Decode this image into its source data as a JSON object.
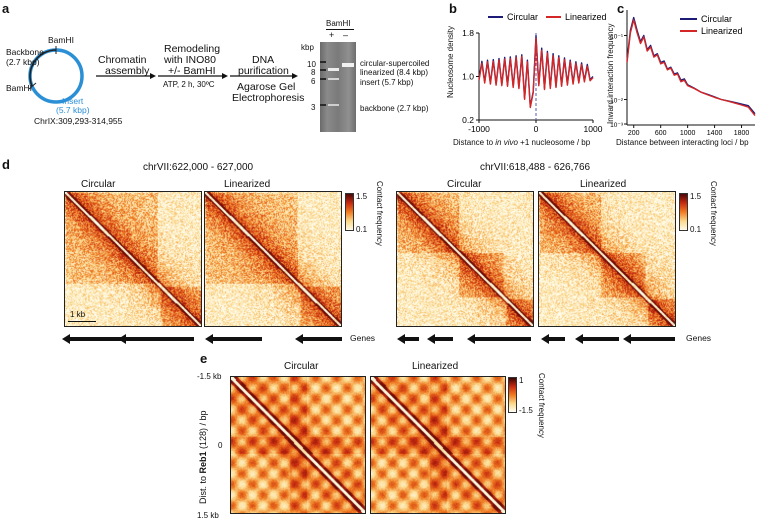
{
  "panel_a": {
    "label": "a",
    "plasmid": {
      "backbone": "Backbone",
      "backbone_size": "(2.7 kbp)",
      "site_top": "BamHI",
      "site_left": "BamHI",
      "insert": "Insert",
      "insert_size": "(5.7 kbp)",
      "locus": "ChrIX:309,293-314,955"
    },
    "steps": {
      "step1_l1": "Chromatin",
      "step1_l2": "assembly",
      "step2_l1": "Remodeling",
      "step2_l2": "with INO80",
      "step2_l3": "+/- BamHI",
      "step2_sub": "ATP, 2 h, 30ºC",
      "step3_l1": "DNA",
      "step3_l2": "purification",
      "step3_sub1": "Agarose Gel",
      "step3_sub2": "Electrophoresis"
    },
    "gel": {
      "header": "BamHI",
      "lane_plus": "+",
      "lane_minus": "–",
      "kbp": "kbp",
      "markers": [
        "10",
        "8",
        "6",
        "3"
      ],
      "band_supercoiled": "circular-supercoiled",
      "band_linearized": "linearized (8.4 kbp)",
      "band_insert": "insert (5.7 kbp)",
      "band_backbone": "backbone (2.7 kbp)"
    }
  },
  "panel_b": {
    "label": "b",
    "chart_data": {
      "type": "line",
      "legend": [
        "Circular",
        "Linearized"
      ],
      "ylabel": "Nucleosome density",
      "xlabel_pre": "Distance to ",
      "xlabel_ital": "in vivo",
      "xlabel_post": " +1 nucleosome / bp",
      "xlim": [
        -1000,
        1000
      ],
      "ylim": [
        0.2,
        1.8
      ],
      "xticks": [
        "-1000",
        "0",
        "1000"
      ],
      "yticks": [
        "1.8",
        "1.0",
        "0.2"
      ],
      "series": [
        {
          "name": "Circular",
          "color": "#1c1c78",
          "x": [
            -1000,
            -950,
            -900,
            -850,
            -800,
            -750,
            -700,
            -650,
            -600,
            -550,
            -500,
            -450,
            -400,
            -350,
            -300,
            -250,
            -200,
            -150,
            -100,
            -50,
            0,
            50,
            100,
            150,
            200,
            250,
            300,
            350,
            400,
            450,
            500,
            550,
            600,
            650,
            700,
            750,
            800,
            850,
            900,
            950,
            1000
          ],
          "values": [
            0.95,
            1.28,
            0.9,
            1.3,
            0.88,
            1.31,
            0.86,
            1.33,
            0.85,
            1.35,
            0.84,
            1.36,
            0.82,
            1.38,
            0.8,
            1.4,
            0.6,
            1.3,
            0.45,
            0.72,
            1.75,
            0.85,
            1.52,
            0.78,
            1.46,
            0.8,
            1.42,
            0.82,
            1.38,
            0.84,
            1.34,
            0.86,
            1.3,
            0.88,
            1.27,
            0.9,
            1.25,
            0.92,
            1.22,
            0.94,
            1.0
          ]
        },
        {
          "name": "Linearized",
          "color": "#d42626",
          "x": [
            -1000,
            -950,
            -900,
            -850,
            -800,
            -750,
            -700,
            -650,
            -600,
            -550,
            -500,
            -450,
            -400,
            -350,
            -300,
            -250,
            -200,
            -150,
            -100,
            -50,
            0,
            50,
            100,
            150,
            200,
            250,
            300,
            350,
            400,
            450,
            500,
            550,
            600,
            650,
            700,
            750,
            800,
            850,
            900,
            950,
            1000
          ],
          "values": [
            0.93,
            1.24,
            0.88,
            1.27,
            0.86,
            1.28,
            0.84,
            1.3,
            0.83,
            1.32,
            0.82,
            1.33,
            0.8,
            1.35,
            0.78,
            1.37,
            0.58,
            1.27,
            0.43,
            0.7,
            1.7,
            0.83,
            1.48,
            0.76,
            1.43,
            0.78,
            1.38,
            0.8,
            1.35,
            0.82,
            1.31,
            0.84,
            1.27,
            0.86,
            1.24,
            0.88,
            1.22,
            0.9,
            1.19,
            0.92,
            0.98
          ]
        }
      ]
    }
  },
  "panel_c": {
    "label": "c",
    "chart_data": {
      "type": "line",
      "legend": [
        "Circular",
        "Linearized"
      ],
      "ylabel": "Inward interaction frequency",
      "xlabel": "Distance between interacting loci / bp",
      "xlim": [
        100,
        2000
      ],
      "xticks": [
        "200",
        "600",
        "1000",
        "1400",
        "1800"
      ],
      "yticks": [
        "10⁻¹",
        "10⁻²",
        "10⁻³"
      ],
      "series": [
        {
          "name": "Circular",
          "color": "#1c1c78",
          "x": [
            100,
            150,
            200,
            250,
            300,
            350,
            400,
            450,
            500,
            550,
            600,
            650,
            700,
            750,
            800,
            850,
            900,
            950,
            1000,
            1100,
            1200,
            1300,
            1400,
            1500,
            1600,
            1700,
            1800,
            1900,
            2000
          ],
          "values": [
            0.04,
            0.12,
            0.19,
            0.12,
            0.08,
            0.1,
            0.06,
            0.07,
            0.048,
            0.052,
            0.038,
            0.04,
            0.03,
            0.032,
            0.025,
            0.026,
            0.02,
            0.021,
            0.017,
            0.015,
            0.013,
            0.012,
            0.011,
            0.01,
            0.0095,
            0.009,
            0.0085,
            0.008,
            0.006
          ]
        },
        {
          "name": "Linearized",
          "color": "#d42626",
          "x": [
            100,
            150,
            200,
            250,
            300,
            350,
            400,
            450,
            500,
            550,
            600,
            650,
            700,
            750,
            800,
            850,
            900,
            950,
            1000,
            1100,
            1200,
            1300,
            1400,
            1500,
            1600,
            1700,
            1800,
            1900,
            2000
          ],
          "values": [
            0.038,
            0.11,
            0.175,
            0.11,
            0.075,
            0.095,
            0.057,
            0.066,
            0.046,
            0.05,
            0.036,
            0.038,
            0.029,
            0.031,
            0.024,
            0.025,
            0.019,
            0.02,
            0.0165,
            0.0148,
            0.013,
            0.0118,
            0.0108,
            0.01,
            0.0094,
            0.0088,
            0.0082,
            0.0076,
            0.0056
          ]
        }
      ]
    }
  },
  "panel_d": {
    "label": "d",
    "left": {
      "title": "chrVII:622,000 - 627,000",
      "col1": "Circular",
      "col2": "Linearized",
      "colorbar_max": "1.5",
      "colorbar_min": "0.1",
      "colorbar_label": "Contact frequency",
      "scalebar": "1 kb",
      "genes_label": "Genes"
    },
    "right": {
      "title": "chrVII:618,488 - 626,766",
      "col1": "Circular",
      "col2": "Linearized",
      "colorbar_max": "1.5",
      "colorbar_min": "0.1",
      "colorbar_label": "Contact frequency",
      "genes_label": "Genes"
    }
  },
  "panel_e": {
    "label": "e",
    "col1": "Circular",
    "col2": "Linearized",
    "ylabel_pre": "Dist. to ",
    "ylabel_bold": "Reb1",
    "ylabel_post": " (128) / bp",
    "yticks": [
      "-1.5 kb",
      "0",
      "1.5 kb"
    ],
    "colorbar_max": "1",
    "colorbar_min": "-1.5",
    "colorbar_label": "Contact frequency"
  },
  "colors": {
    "circular": "#1c1c78",
    "linearized": "#d42626",
    "plasmid_insert": "#2b8fd6",
    "heat_dark": "#8c1208",
    "heat_mid": "#e8601a",
    "heat_light": "#fbd88a"
  }
}
